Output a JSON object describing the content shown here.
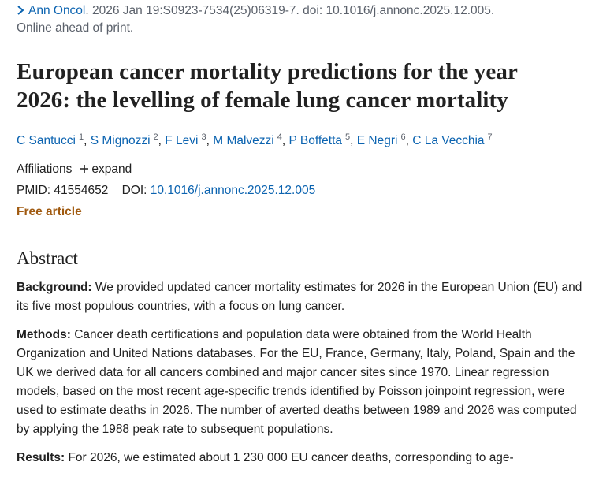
{
  "citation": {
    "journal": "Ann Oncol",
    "details": ". 2026 Jan 19:S0923-7534(25)06319-7. doi: 10.1016/j.annonc.2025.12.005.",
    "status": "Online ahead of print."
  },
  "title": "European cancer mortality predictions for the year 2026: the levelling of female lung cancer mortality",
  "authors": [
    {
      "name": "C Santucci",
      "affiliation": "1"
    },
    {
      "name": "S Mignozzi",
      "affiliation": "2"
    },
    {
      "name": "F Levi",
      "affiliation": "3"
    },
    {
      "name": "M Malvezzi",
      "affiliation": "4"
    },
    {
      "name": "P Boffetta",
      "affiliation": "5"
    },
    {
      "name": "E Negri",
      "affiliation": "6"
    },
    {
      "name": "C La Vecchia",
      "affiliation": "7"
    }
  ],
  "author_separator": ",",
  "affiliations": {
    "label": "Affiliations",
    "toggle": "expand"
  },
  "identifiers": {
    "pmid_label": "PMID:",
    "pmid": "41554652",
    "doi_label": "DOI:",
    "doi": "10.1016/j.annonc.2025.12.005"
  },
  "access": "Free article",
  "abstract": {
    "heading": "Abstract",
    "sections": [
      {
        "label": "Background:",
        "text": "We provided updated cancer mortality estimates for 2026 in the European Union (EU) and its five most populous countries, with a focus on lung cancer."
      },
      {
        "label": "Methods:",
        "text": "Cancer death certifications and population data were obtained from the World Health Organization and United Nations databases. For the EU, France, Germany, Italy, Poland, Spain and the UK we derived data for all cancers combined and major cancer sites since 1970. Linear regression models, based on the most recent age-specific trends identified by Poisson joinpoint regression, were used to estimate deaths in 2026. The number of averted deaths between 1989 and 2026 was computed by applying the 1988 peak rate to subsequent populations."
      },
      {
        "label": "Results:",
        "text": "For 2026, we estimated about 1 230 000 EU cancer deaths, corresponding to age-"
      }
    ]
  }
}
